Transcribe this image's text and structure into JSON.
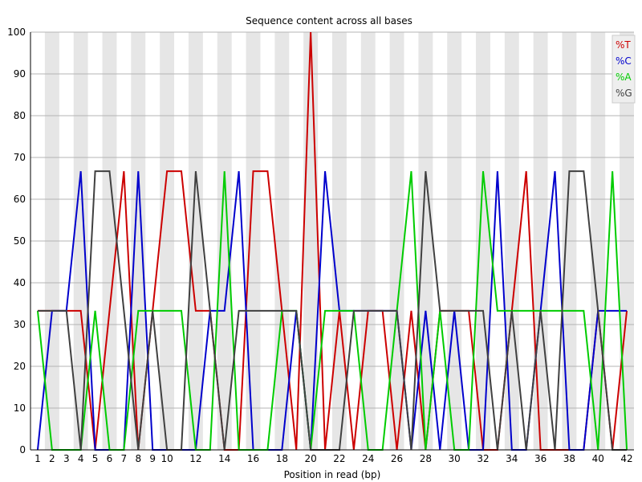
{
  "chart_data": {
    "type": "line",
    "title": "Sequence content across all bases",
    "xlabel": "Position in read (bp)",
    "ylabel": "",
    "ylim": [
      0,
      100
    ],
    "yticks": [
      0,
      10,
      20,
      30,
      40,
      50,
      60,
      70,
      80,
      90,
      100
    ],
    "x": [
      1,
      2,
      3,
      4,
      5,
      6,
      7,
      8,
      9,
      10,
      11,
      12,
      13,
      14,
      15,
      16,
      17,
      18,
      19,
      20,
      21,
      22,
      23,
      24,
      25,
      26,
      27,
      28,
      29,
      30,
      31,
      32,
      33,
      34,
      35,
      36,
      37,
      38,
      39,
      40,
      41,
      42
    ],
    "xtick_labels": [
      "1",
      "2",
      "3",
      "4",
      "5",
      "6",
      "7",
      "8",
      "9",
      "10",
      "12",
      "14",
      "16",
      "18",
      "20",
      "22",
      "24",
      "26",
      "28",
      "30",
      "32",
      "34",
      "36",
      "38",
      "40",
      "42"
    ],
    "legend_position": "top-right",
    "series": [
      {
        "name": "%T",
        "color": "#cc0000",
        "values": [
          33.3,
          33.3,
          33.3,
          33.3,
          0,
          33.3,
          66.7,
          0,
          33.3,
          66.7,
          66.7,
          33.3,
          33.3,
          0,
          0,
          66.7,
          66.7,
          33.3,
          0,
          100,
          0,
          33.3,
          0,
          33.3,
          33.3,
          0,
          33.3,
          0,
          33.3,
          33.3,
          33.3,
          0,
          0,
          33.3,
          66.7,
          0,
          0,
          0,
          0,
          33.3,
          0,
          33.3
        ]
      },
      {
        "name": "%C",
        "color": "#0000cc",
        "values": [
          0,
          33.3,
          33.3,
          66.7,
          0,
          0,
          0,
          66.7,
          0,
          0,
          0,
          0,
          33.3,
          33.3,
          66.7,
          0,
          0,
          0,
          33.3,
          0,
          66.7,
          33.3,
          33.3,
          33.3,
          33.3,
          33.3,
          0,
          33.3,
          0,
          33.3,
          0,
          0,
          66.7,
          0,
          0,
          33.3,
          66.7,
          0,
          0,
          33.3,
          33.3,
          33.3
        ]
      },
      {
        "name": "%A",
        "color": "#00cc00",
        "values": [
          33.3,
          0,
          0,
          0,
          33.3,
          0,
          0,
          33.3,
          33.3,
          33.3,
          33.3,
          0,
          0,
          66.7,
          0,
          0,
          0,
          33.3,
          33.3,
          0,
          33.3,
          33.3,
          33.3,
          0,
          0,
          33.3,
          66.7,
          0,
          33.3,
          0,
          0,
          66.7,
          33.3,
          33.3,
          33.3,
          33.3,
          33.3,
          33.3,
          33.3,
          0,
          66.7,
          0
        ]
      },
      {
        "name": "%G",
        "color": "#404040",
        "values": [
          33.3,
          33.3,
          33.3,
          0,
          66.7,
          66.7,
          33.3,
          0,
          33.3,
          0,
          0,
          66.7,
          33.3,
          0,
          33.3,
          33.3,
          33.3,
          33.3,
          33.3,
          0,
          0,
          0,
          33.3,
          33.3,
          33.3,
          33.3,
          0,
          66.7,
          33.3,
          33.3,
          33.3,
          33.3,
          0,
          33.3,
          0,
          33.3,
          0,
          66.7,
          66.7,
          33.3,
          0,
          0
        ]
      }
    ]
  }
}
